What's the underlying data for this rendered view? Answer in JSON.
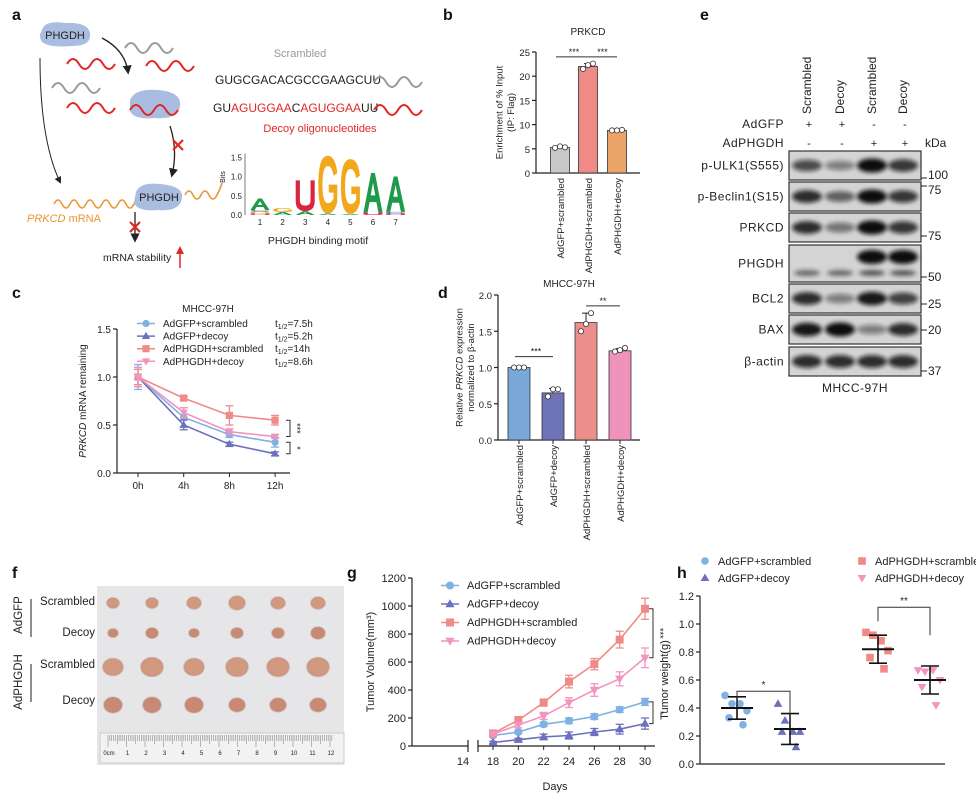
{
  "panel_labels": {
    "a": "a",
    "b": "b",
    "c": "c",
    "d": "d",
    "e": "e",
    "f": "f",
    "g": "g",
    "h": "h"
  },
  "diagram": {
    "protein": "PHGDH",
    "protein_bound": "PHGDH",
    "mrna_gene": "PRKCD",
    "mrna_suffix": " mRNA",
    "stability_label": "mRNA stability",
    "scrambled_title": "Scrambled",
    "scrambled_seq": "GUGCGACACGCCGAAGCUU",
    "decoy_seq_parts": [
      {
        "t": "GU",
        "red": false
      },
      {
        "t": "AGUGGAA",
        "red": true
      },
      {
        "t": "C",
        "red": false
      },
      {
        "t": "AGUGGAA",
        "red": true
      },
      {
        "t": "UU",
        "red": false
      }
    ],
    "decoy_title": "Decoy oligonucleotides",
    "motif": {
      "title": "PHGDH binding motif",
      "ylabel": "Bits",
      "yticks": [
        "0.0",
        "0.5",
        "1.0",
        "1.5"
      ],
      "positions": [
        "1",
        "2",
        "3",
        "4",
        "5",
        "6",
        "7"
      ],
      "letters": [
        [
          {
            "l": "U",
            "bits": 0.04,
            "c": "#d7263d"
          },
          {
            "l": "G",
            "bits": 0.05,
            "c": "#f2a81d"
          },
          {
            "l": "C",
            "bits": 0.04,
            "c": "#3a6fc4"
          },
          {
            "l": "A",
            "bits": 0.3,
            "c": "#1e9a4a"
          }
        ],
        [
          {
            "l": "A",
            "bits": 0.08,
            "c": "#1e9a4a"
          },
          {
            "l": "G",
            "bits": 0.1,
            "c": "#f2a81d"
          }
        ],
        [
          {
            "l": "A",
            "bits": 0.1,
            "c": "#1e9a4a"
          },
          {
            "l": "U",
            "bits": 0.8,
            "c": "#d7263d"
          }
        ],
        [
          {
            "l": "A",
            "bits": 0.04,
            "c": "#1e9a4a"
          },
          {
            "l": "G",
            "bits": 1.5,
            "c": "#f2a81d"
          }
        ],
        [
          {
            "l": "A",
            "bits": 0.03,
            "c": "#1e9a4a"
          },
          {
            "l": "G",
            "bits": 1.42,
            "c": "#f2a81d"
          }
        ],
        [
          {
            "l": "U",
            "bits": 0.07,
            "c": "#d7263d"
          },
          {
            "l": "A",
            "bits": 1.02,
            "c": "#1e9a4a"
          }
        ],
        [
          {
            "l": "U",
            "bits": 0.04,
            "c": "#d7263d"
          },
          {
            "l": "C",
            "bits": 0.04,
            "c": "#3a6fc4"
          },
          {
            "l": "A",
            "bits": 0.92,
            "c": "#1e9a4a"
          }
        ]
      ]
    }
  },
  "blot": {
    "column_headers": [
      "Scrambled",
      "Decoy",
      "Scrambled",
      "Decoy"
    ],
    "row_conditions": [
      {
        "label": "AdGFP",
        "values": [
          "+",
          "+",
          "-",
          "-"
        ]
      },
      {
        "label": "AdPHGDH",
        "values": [
          "-",
          "-",
          "+",
          "+"
        ]
      }
    ],
    "kda_label": "kDa",
    "rows": [
      {
        "label": "p-ULK1(S555)",
        "intensity": [
          0.7,
          0.45,
          1.0,
          0.8
        ]
      },
      {
        "label": "p-Beclin1(S15)",
        "intensity": [
          0.85,
          0.6,
          1.0,
          0.8
        ]
      },
      {
        "label": "PRKCD",
        "intensity": [
          0.85,
          0.5,
          1.0,
          0.8
        ]
      },
      {
        "label": "PHGDH",
        "intensity": [
          0.0,
          0.0,
          1.0,
          1.0
        ],
        "lower": [
          0.6,
          0.6,
          0.7,
          0.7
        ]
      },
      {
        "label": "BCL2",
        "intensity": [
          0.85,
          0.45,
          0.95,
          0.75
        ]
      },
      {
        "label": "BAX",
        "intensity": [
          0.95,
          1.0,
          0.45,
          0.85
        ]
      },
      {
        "label": "β-actin",
        "intensity": [
          0.85,
          0.85,
          0.85,
          0.85
        ]
      }
    ],
    "markers": [
      "100",
      "75",
      "75",
      "50",
      "25",
      "20",
      "37"
    ],
    "cell_line": "MHCC-97H"
  },
  "photo": {
    "group_labels": [
      "AdGFP",
      "AdPHGDH"
    ],
    "row_labels": [
      "Scrambled",
      "Decoy",
      "Scrambled",
      "Decoy"
    ],
    "ruler_labels": [
      "0cm",
      "1",
      "2",
      "3",
      "4",
      "5",
      "6",
      "7",
      "8",
      "9",
      "10",
      "11",
      "12"
    ]
  },
  "chart_data": [
    {
      "id": "b",
      "type": "bar",
      "title": "PRKCD",
      "ylabel": [
        [
          {
            "t": "Enrichment of % Input"
          }
        ],
        [
          {
            "t": "(IP: Flag)"
          }
        ]
      ],
      "categories": [
        "AdGFP+scrambled",
        "AdPHGDH+scrambled",
        "AdPHGDH+decoy"
      ],
      "values": [
        5.3,
        22.0,
        8.8
      ],
      "sd": [
        0.2,
        0.6,
        0.1
      ],
      "points": [
        [
          5.2,
          5.5,
          5.3
        ],
        [
          21.5,
          22.3,
          22.6
        ],
        [
          8.8,
          8.8,
          8.9
        ]
      ],
      "colors": [
        "#c9c9c9",
        "#ef8a86",
        "#eda468"
      ],
      "ylim": [
        0,
        25
      ],
      "yticks": [
        "0",
        "5",
        "10",
        "15",
        "20",
        "25"
      ],
      "significance": [
        {
          "from": 0,
          "to": 1,
          "label": "***",
          "y": 24
        },
        {
          "from": 1,
          "to": 2,
          "label": "***",
          "y": 24
        }
      ]
    },
    {
      "id": "c",
      "type": "line",
      "title": "MHCC-97H",
      "ylabel": [
        [
          {
            "t": "PRKCD",
            "i": true
          },
          {
            "t": " mRNA remaining"
          }
        ]
      ],
      "x": [
        "0h",
        "4h",
        "8h",
        "12h"
      ],
      "ylim": [
        0,
        1.5
      ],
      "yticks": [
        "0.0",
        "0.5",
        "1.0",
        "1.5"
      ],
      "half_life_symbol": "t",
      "half_life_sub": "1/2",
      "series": [
        {
          "name": "AdGFP+scrambled",
          "half_life": "=7.5h",
          "marker": "circle",
          "color": "#7fb1e3",
          "values": [
            1.0,
            0.58,
            0.4,
            0.32
          ],
          "sd": [
            0.13,
            0.1,
            0.03,
            0.05
          ]
        },
        {
          "name": "AdGFP+decoy",
          "half_life": "=5.2h",
          "marker": "triangle-up",
          "color": "#6d70bd",
          "values": [
            1.0,
            0.5,
            0.3,
            0.2
          ],
          "sd": [
            0.1,
            0.05,
            0.02,
            0.02
          ]
        },
        {
          "name": "AdPHGDH+scrambled",
          "half_life": "=14h",
          "marker": "square",
          "color": "#f08a87",
          "values": [
            1.0,
            0.78,
            0.6,
            0.55
          ],
          "sd": [
            0.08,
            0.02,
            0.1,
            0.05
          ]
        },
        {
          "name": "AdPHGDH+decoy",
          "half_life": "=8.6h",
          "marker": "triangle-down",
          "color": "#f394c0",
          "values": [
            1.0,
            0.63,
            0.43,
            0.38
          ],
          "sd": [
            0.1,
            0.05,
            0.03,
            0.02
          ]
        }
      ],
      "significance": [
        {
          "a": 2,
          "b": 3,
          "label": "***"
        },
        {
          "a": 0,
          "b": 1,
          "label": "*"
        }
      ]
    },
    {
      "id": "d",
      "type": "bar",
      "title": "MHCC-97H",
      "ylabel": [
        [
          {
            "t": "Relative "
          },
          {
            "t": "PRKCD",
            "i": true
          },
          {
            "t": " expression"
          }
        ],
        [
          {
            "t": "normalized to β-actin"
          }
        ]
      ],
      "categories": [
        "AdGFP+scrambled",
        "AdGFP+decoy",
        "AdPHGDH+scrambled",
        "AdPHGDH+decoy"
      ],
      "values": [
        1.0,
        0.65,
        1.62,
        1.23
      ],
      "sd": [
        0.01,
        0.06,
        0.13,
        0.03
      ],
      "points": [
        [
          1.0,
          1.0,
          1.0
        ],
        [
          0.6,
          0.7,
          0.7
        ],
        [
          1.5,
          1.6,
          1.75
        ],
        [
          1.22,
          1.24,
          1.27
        ]
      ],
      "colors": [
        "#79a7d8",
        "#6e73b8",
        "#ec8f8b",
        "#ef93bd"
      ],
      "ylim": [
        0,
        2
      ],
      "yticks": [
        "0.0",
        "0.5",
        "1.0",
        "1.5",
        "2.0"
      ],
      "significance": [
        {
          "from": 0,
          "to": 1,
          "label": "***",
          "y": 1.15
        },
        {
          "from": 2,
          "to": 3,
          "label": "**",
          "y": 1.85
        }
      ]
    },
    {
      "id": "g",
      "type": "line",
      "title": "",
      "ylabel": [
        [
          {
            "t": "Tumor Volume(mm³)"
          }
        ]
      ],
      "xlabel": "Days",
      "xticks": [
        "14",
        "18",
        "20",
        "22",
        "24",
        "26",
        "28",
        "30"
      ],
      "x": [
        18,
        20,
        22,
        24,
        26,
        28,
        30
      ],
      "ylim": [
        0,
        1200
      ],
      "yticks": [
        "0",
        "200",
        "400",
        "600",
        "800",
        "1000",
        "1200"
      ],
      "series": [
        {
          "name": "AdGFP+scrambled",
          "marker": "circle",
          "color": "#7fb1e3",
          "values": [
            75,
            100,
            155,
            180,
            210,
            260,
            315
          ],
          "sd": [
            10,
            12,
            15,
            20,
            20,
            20,
            25
          ]
        },
        {
          "name": "AdGFP+decoy",
          "marker": "triangle-up",
          "color": "#6d70bd",
          "values": [
            25,
            45,
            65,
            75,
            100,
            120,
            160
          ],
          "sd": [
            8,
            10,
            20,
            25,
            25,
            35,
            40
          ]
        },
        {
          "name": "AdPHGDH+scrambled",
          "marker": "square",
          "color": "#f08a87",
          "values": [
            90,
            185,
            310,
            460,
            585,
            760,
            980
          ],
          "sd": [
            15,
            25,
            25,
            45,
            40,
            60,
            75
          ]
        },
        {
          "name": "AdPHGDH+decoy",
          "marker": "triangle-down",
          "color": "#f394c0",
          "values": [
            85,
            150,
            215,
            310,
            400,
            480,
            630
          ],
          "sd": [
            10,
            20,
            25,
            35,
            45,
            50,
            70
          ]
        }
      ],
      "significance": [
        {
          "a": 2,
          "b": 3,
          "label": "***"
        },
        {
          "a": 0,
          "b": 1,
          "label": "*"
        }
      ]
    },
    {
      "id": "h",
      "type": "scatter",
      "title": "",
      "ylabel": [
        [
          {
            "t": "Tumor weight(g)"
          }
        ]
      ],
      "ylim": [
        0,
        1.2
      ],
      "yticks": [
        "0.0",
        "0.2",
        "0.4",
        "0.6",
        "0.8",
        "1.0",
        "1.2"
      ],
      "groups": [
        {
          "name": "AdGFP+scrambled",
          "marker": "circle",
          "color": "#7fb1e3",
          "points": [
            0.49,
            0.43,
            0.43,
            0.38,
            0.33,
            0.28
          ],
          "mean": 0.4,
          "sd": 0.08
        },
        {
          "name": "AdGFP+decoy",
          "marker": "triangle-up",
          "color": "#6d70bd",
          "points": [
            0.43,
            0.31,
            0.23,
            0.23,
            0.23,
            0.12
          ],
          "mean": 0.25,
          "sd": 0.11
        },
        {
          "name": "AdPHGDH+scrambled",
          "marker": "square",
          "color": "#f08a87",
          "points": [
            0.94,
            0.92,
            0.88,
            0.81,
            0.76,
            0.68
          ],
          "mean": 0.82,
          "sd": 0.1
        },
        {
          "name": "AdPHGDH+decoy",
          "marker": "triangle-down",
          "color": "#f394c0",
          "points": [
            0.67,
            0.66,
            0.67,
            0.6,
            0.55,
            0.42
          ],
          "mean": 0.6,
          "sd": 0.1
        }
      ],
      "significance": [
        {
          "from": 0,
          "to": 1,
          "label": "*",
          "y": 0.52
        },
        {
          "from": 2,
          "to": 3,
          "label": "**",
          "y": 1.12
        }
      ]
    }
  ]
}
